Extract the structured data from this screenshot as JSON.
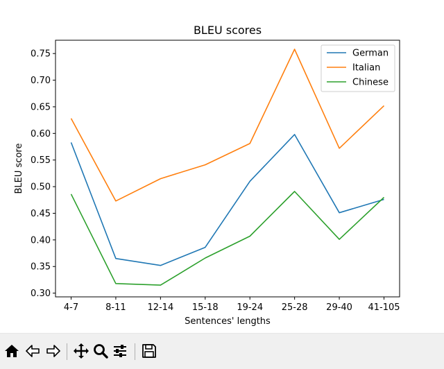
{
  "chart_data": {
    "type": "line",
    "title": "BLEU scores",
    "xlabel": "Sentences' lengths",
    "ylabel": "BLEU score",
    "categories": [
      "4-7",
      "8-11",
      "12-14",
      "15-18",
      "19-24",
      "25-28",
      "29-40",
      "41-105"
    ],
    "yticks": [
      "0.30",
      "0.35",
      "0.40",
      "0.45",
      "0.50",
      "0.55",
      "0.60",
      "0.65",
      "0.70",
      "0.75"
    ],
    "ylim": [
      0.293,
      0.775
    ],
    "grid": false,
    "legend_position": "upper-right",
    "series": [
      {
        "name": "German",
        "color": "#1f77b4",
        "values": [
          0.583,
          0.365,
          0.352,
          0.386,
          0.51,
          0.598,
          0.451,
          0.476
        ]
      },
      {
        "name": "Italian",
        "color": "#ff7f0e",
        "values": [
          0.628,
          0.473,
          0.515,
          0.541,
          0.581,
          0.758,
          0.572,
          0.652
        ]
      },
      {
        "name": "Chinese",
        "color": "#2ca02c",
        "values": [
          0.486,
          0.318,
          0.315,
          0.366,
          0.407,
          0.491,
          0.401,
          0.48
        ]
      }
    ]
  },
  "toolbar": {
    "buttons": [
      {
        "name": "home-icon"
      },
      {
        "name": "back-arrow-icon"
      },
      {
        "name": "forward-arrow-icon"
      },
      {
        "name": "pan-move-icon"
      },
      {
        "name": "zoom-magnifier-icon"
      },
      {
        "name": "configure-subplots-icon"
      },
      {
        "name": "save-floppy-icon"
      }
    ]
  }
}
